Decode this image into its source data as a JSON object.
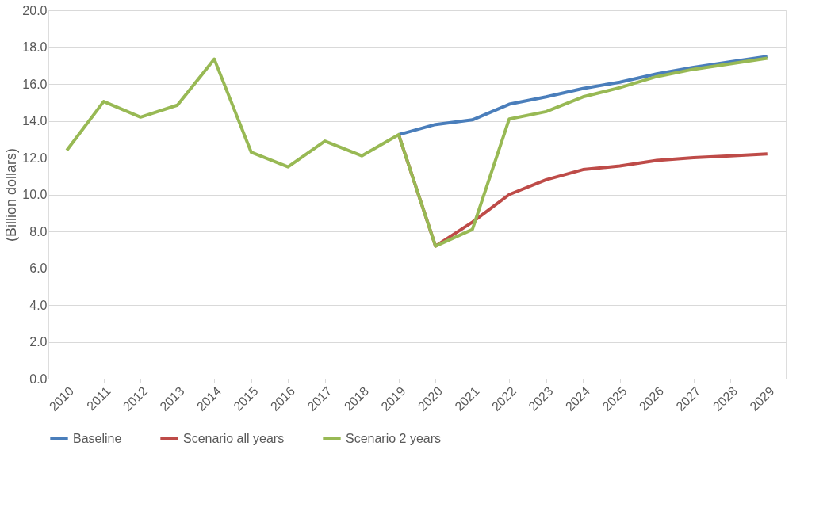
{
  "chart_data": {
    "type": "line",
    "ylabel": "(Billion dollars)",
    "categories": [
      "2010",
      "2011",
      "2012",
      "2013",
      "2014",
      "2015",
      "2016",
      "2017",
      "2018",
      "2019",
      "2020",
      "2021",
      "2022",
      "2023",
      "2024",
      "2025",
      "2026",
      "2027",
      "2028",
      "2029"
    ],
    "series": [
      {
        "name": "Baseline",
        "color": "#4a7ebb",
        "values": [
          null,
          null,
          null,
          null,
          null,
          null,
          null,
          null,
          null,
          13.25,
          13.8,
          14.05,
          14.9,
          15.3,
          15.75,
          16.1,
          16.55,
          16.9,
          17.2,
          17.5
        ]
      },
      {
        "name": "Scenario all years",
        "color": "#be4b48",
        "values": [
          null,
          null,
          null,
          null,
          null,
          null,
          null,
          null,
          null,
          13.25,
          7.2,
          8.5,
          10.0,
          10.8,
          11.35,
          11.55,
          11.85,
          12.0,
          12.1,
          12.2
        ]
      },
      {
        "name": "Scenario 2 years",
        "color": "#98b954",
        "values": [
          12.4,
          15.05,
          14.2,
          14.85,
          17.35,
          12.3,
          11.5,
          12.9,
          12.1,
          13.25,
          7.2,
          8.1,
          14.1,
          14.5,
          15.3,
          15.8,
          16.4,
          16.8,
          17.1,
          17.4
        ]
      }
    ],
    "ylim": [
      0,
      20
    ],
    "yticks": [
      {
        "value": 0,
        "label": "0.0"
      },
      {
        "value": 2,
        "label": "2.0"
      },
      {
        "value": 4,
        "label": "4.0"
      },
      {
        "value": 6,
        "label": "6.0"
      },
      {
        "value": 8,
        "label": "8.0"
      },
      {
        "value": 10,
        "label": "10.0"
      },
      {
        "value": 12,
        "label": "12.0"
      },
      {
        "value": 14,
        "label": "14.0"
      },
      {
        "value": 16,
        "label": "16.0"
      },
      {
        "value": 18,
        "label": "18.0"
      },
      {
        "value": 20,
        "label": "20.0"
      }
    ],
    "grid": "y",
    "legend": "bottom",
    "marker": "none",
    "line_style": "solid"
  }
}
